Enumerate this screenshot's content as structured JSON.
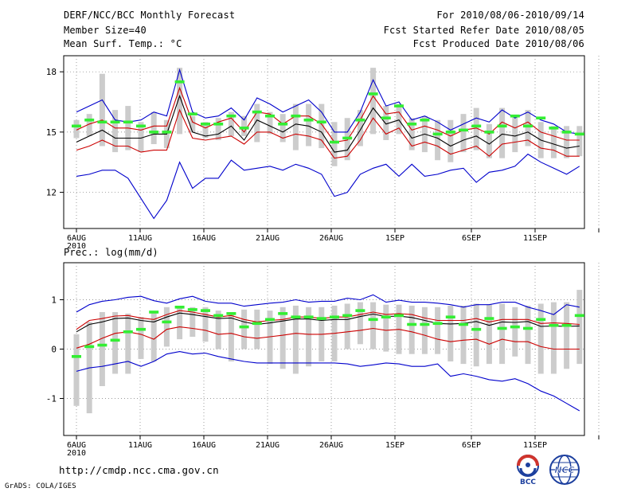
{
  "header": {
    "title": "DERF/NCC/BCC Monthly Forecast",
    "member_size": "Member Size=40",
    "variable": "Mean Surf. Temp.: °C",
    "forecast_range": "For 2010/08/06-2010/09/14",
    "started_date": "Fcst Started Refer Date 2010/08/05",
    "produced_date": "Fcst Produced Date 2010/08/06"
  },
  "footer": {
    "url": "http://cmdp.ncc.cma.gov.cn",
    "credit": "GrADS: COLA/IGES",
    "logo_bcc": "BCC",
    "logo_ncc": "NCC"
  },
  "colors": {
    "max_min": "#0000cc",
    "quartile": "#cc0000",
    "median": "#000000",
    "box": "#cccccc",
    "mean": "#33ee33"
  },
  "chart_data": [
    {
      "id": "temperature",
      "type": "box-ensemble",
      "title": "",
      "ylabel": "Mean Surf. Temp.: °C",
      "ylim": [
        10.2,
        18.8
      ],
      "yticks": [
        12,
        15,
        18
      ],
      "ytick_labels": [
        "12",
        "15",
        "18"
      ],
      "grid": true,
      "day_start": 1,
      "x_tick_days": [
        1,
        6,
        11,
        16,
        21,
        26,
        32,
        37,
        42
      ],
      "x_tick_labels": [
        "6AUG",
        "11AUG",
        "16AUG",
        "21AUG",
        "26AUG",
        "1SEP",
        "6SEP",
        "11SEP",
        ""
      ],
      "x_first_year": "2010",
      "series": {
        "max": [
          16.0,
          16.3,
          16.6,
          15.6,
          15.5,
          15.6,
          16.0,
          15.8,
          18.1,
          16.0,
          15.7,
          15.8,
          16.2,
          15.6,
          16.7,
          16.4,
          16.0,
          16.3,
          16.6,
          16.0,
          15.0,
          15.0,
          16.0,
          17.6,
          16.3,
          16.5,
          15.6,
          15.8,
          15.5,
          15.1,
          15.4,
          15.7,
          15.5,
          16.1,
          15.7,
          16.0,
          15.6,
          15.4,
          15.0,
          14.9
        ],
        "q75": [
          15.1,
          15.4,
          15.6,
          15.2,
          15.2,
          15.1,
          15.3,
          15.3,
          17.2,
          15.5,
          15.2,
          15.5,
          15.7,
          15.0,
          16.0,
          15.9,
          15.4,
          15.8,
          15.8,
          15.4,
          14.5,
          14.6,
          15.6,
          16.8,
          15.9,
          16.0,
          15.1,
          15.3,
          15.1,
          14.8,
          15.1,
          15.2,
          14.9,
          15.5,
          15.2,
          15.5,
          15.0,
          14.8,
          14.6,
          14.6
        ],
        "median": [
          14.5,
          14.8,
          15.1,
          14.7,
          14.7,
          14.7,
          14.9,
          14.9,
          16.8,
          15.0,
          14.8,
          14.9,
          15.3,
          14.6,
          15.6,
          15.3,
          15.0,
          15.4,
          15.3,
          15.0,
          14.0,
          14.1,
          15.1,
          16.2,
          15.4,
          15.6,
          14.7,
          14.9,
          14.7,
          14.3,
          14.6,
          14.8,
          14.4,
          14.9,
          14.8,
          15.0,
          14.6,
          14.4,
          14.2,
          14.3
        ],
        "q25": [
          14.1,
          14.3,
          14.6,
          14.3,
          14.3,
          14.0,
          14.1,
          14.1,
          16.1,
          14.7,
          14.6,
          14.7,
          14.8,
          14.4,
          15.0,
          15.0,
          14.7,
          14.9,
          14.8,
          14.6,
          13.7,
          13.8,
          14.6,
          15.7,
          14.9,
          15.2,
          14.3,
          14.5,
          14.3,
          13.9,
          14.1,
          14.3,
          13.8,
          14.4,
          14.5,
          14.6,
          14.2,
          14.1,
          13.8,
          13.8
        ],
        "min": [
          12.8,
          12.9,
          13.1,
          13.1,
          12.7,
          11.7,
          10.7,
          11.6,
          13.5,
          12.2,
          12.7,
          12.7,
          13.6,
          13.1,
          13.2,
          13.3,
          13.1,
          13.4,
          13.2,
          12.9,
          11.8,
          12.0,
          12.9,
          13.2,
          13.4,
          12.8,
          13.4,
          12.8,
          12.9,
          13.1,
          13.2,
          12.5,
          13.0,
          13.1,
          13.3,
          13.9,
          13.5,
          13.2,
          12.9,
          13.3
        ],
        "box_hi": [
          15.6,
          15.9,
          17.9,
          16.1,
          16.3,
          15.5,
          16.0,
          15.6,
          18.2,
          15.8,
          15.5,
          15.7,
          16.0,
          15.8,
          16.4,
          16.0,
          15.9,
          16.4,
          16.4,
          16.4,
          15.5,
          15.7,
          16.1,
          18.2,
          16.3,
          16.4,
          15.7,
          15.8,
          15.6,
          15.6,
          15.9,
          16.2,
          15.4,
          16.2,
          15.8,
          16.1,
          15.5,
          15.3,
          15.3,
          15.3
        ],
        "box_lo": [
          14.7,
          14.8,
          14.3,
          14.0,
          14.1,
          14.0,
          14.4,
          14.2,
          14.9,
          15.0,
          14.7,
          14.6,
          14.8,
          14.8,
          14.5,
          14.9,
          14.5,
          14.1,
          14.3,
          14.2,
          13.3,
          13.6,
          14.3,
          14.9,
          14.6,
          14.9,
          14.1,
          14.0,
          13.6,
          13.5,
          14.0,
          14.1,
          13.7,
          13.7,
          14.0,
          14.3,
          13.7,
          13.7,
          13.7,
          13.8
        ],
        "mean": [
          15.3,
          15.6,
          15.5,
          15.5,
          15.5,
          15.3,
          15.0,
          15.0,
          17.5,
          15.9,
          15.4,
          15.4,
          15.8,
          15.2,
          16.0,
          15.8,
          15.4,
          15.8,
          15.6,
          15.5,
          14.5,
          14.7,
          15.6,
          16.9,
          15.7,
          16.3,
          15.4,
          15.6,
          14.9,
          15.0,
          15.1,
          15.3,
          15.0,
          15.3,
          15.8,
          15.3,
          15.7,
          15.2,
          15.0,
          14.9
        ]
      }
    },
    {
      "id": "precipitation",
      "type": "box-ensemble",
      "title": "Prec.: log(mm/d)",
      "ylabel": "Prec.: log(mm/d)",
      "ylim": [
        -1.75,
        1.75
      ],
      "yticks": [
        -1,
        0,
        1
      ],
      "ytick_labels": [
        "-1",
        "0",
        "1"
      ],
      "grid": true,
      "day_start": 1,
      "x_tick_days": [
        1,
        6,
        11,
        16,
        21,
        26,
        32,
        37,
        42
      ],
      "x_tick_labels": [
        "6AUG",
        "11AUG",
        "16AUG",
        "21AUG",
        "26AUG",
        "1SEP",
        "6SEP",
        "11SEP",
        ""
      ],
      "x_first_year": "2010",
      "series": {
        "max": [
          0.75,
          0.9,
          0.97,
          1.0,
          1.05,
          1.07,
          0.98,
          0.93,
          1.02,
          1.07,
          0.97,
          0.93,
          0.93,
          0.87,
          0.9,
          0.93,
          0.95,
          1.0,
          0.95,
          0.97,
          0.97,
          1.03,
          1.0,
          1.1,
          0.95,
          0.99,
          0.95,
          0.95,
          0.93,
          0.9,
          0.85,
          0.9,
          0.9,
          0.95,
          0.95,
          0.85,
          0.78,
          0.7,
          0.9,
          0.85
        ],
        "q75": [
          0.4,
          0.58,
          0.62,
          0.67,
          0.68,
          0.63,
          0.6,
          0.7,
          0.78,
          0.75,
          0.7,
          0.65,
          0.68,
          0.6,
          0.55,
          0.58,
          0.6,
          0.65,
          0.65,
          0.62,
          0.65,
          0.65,
          0.7,
          0.75,
          0.7,
          0.72,
          0.7,
          0.63,
          0.58,
          0.58,
          0.58,
          0.62,
          0.55,
          0.6,
          0.6,
          0.6,
          0.52,
          0.53,
          0.52,
          0.5
        ],
        "median": [
          0.35,
          0.5,
          0.55,
          0.62,
          0.63,
          0.58,
          0.55,
          0.65,
          0.73,
          0.7,
          0.66,
          0.62,
          0.63,
          0.55,
          0.5,
          0.53,
          0.57,
          0.61,
          0.61,
          0.58,
          0.6,
          0.6,
          0.66,
          0.71,
          0.66,
          0.67,
          0.64,
          0.58,
          0.52,
          0.51,
          0.52,
          0.56,
          0.48,
          0.55,
          0.54,
          0.56,
          0.46,
          0.47,
          0.46,
          0.47
        ],
        "q25": [
          0.02,
          0.1,
          0.22,
          0.32,
          0.35,
          0.3,
          0.2,
          0.4,
          0.45,
          0.42,
          0.38,
          0.3,
          0.32,
          0.25,
          0.22,
          0.25,
          0.28,
          0.32,
          0.3,
          0.3,
          0.32,
          0.35,
          0.38,
          0.42,
          0.38,
          0.4,
          0.35,
          0.28,
          0.2,
          0.15,
          0.18,
          0.2,
          0.1,
          0.2,
          0.15,
          0.15,
          0.05,
          0.0,
          0.0,
          0.0
        ],
        "min": [
          -0.45,
          -0.38,
          -0.35,
          -0.3,
          -0.25,
          -0.35,
          -0.25,
          -0.1,
          -0.05,
          -0.1,
          -0.08,
          -0.15,
          -0.2,
          -0.25,
          -0.28,
          -0.28,
          -0.28,
          -0.28,
          -0.28,
          -0.28,
          -0.28,
          -0.3,
          -0.35,
          -0.32,
          -0.28,
          -0.3,
          -0.35,
          -0.35,
          -0.3,
          -0.55,
          -0.5,
          -0.55,
          -0.62,
          -0.65,
          -0.6,
          -0.7,
          -0.85,
          -0.95,
          -1.1,
          -1.25
        ],
        "box_hi": [
          0.3,
          0.55,
          0.75,
          0.75,
          0.72,
          0.65,
          0.75,
          0.85,
          0.85,
          0.85,
          0.85,
          0.78,
          0.75,
          0.8,
          0.8,
          0.78,
          0.85,
          0.88,
          0.85,
          0.85,
          0.88,
          0.92,
          0.95,
          0.95,
          0.9,
          0.9,
          0.88,
          0.85,
          0.85,
          0.88,
          0.88,
          0.92,
          0.9,
          0.92,
          0.85,
          0.88,
          0.92,
          0.95,
          0.95,
          1.2
        ],
        "box_lo": [
          -1.15,
          -1.3,
          -0.75,
          -0.5,
          -0.5,
          -0.2,
          -0.25,
          0.05,
          0.2,
          0.25,
          0.15,
          0.0,
          -0.25,
          0.0,
          0.0,
          -0.3,
          -0.4,
          -0.5,
          -0.35,
          -0.25,
          -0.25,
          0.0,
          0.1,
          0.0,
          -0.05,
          -0.1,
          -0.1,
          -0.1,
          -0.1,
          -0.25,
          -0.3,
          -0.35,
          -0.3,
          -0.3,
          -0.15,
          -0.3,
          -0.5,
          -0.5,
          -0.4,
          -0.3
        ],
        "mean": [
          -0.15,
          0.05,
          0.08,
          0.18,
          0.35,
          0.4,
          0.75,
          0.55,
          0.85,
          0.8,
          0.78,
          0.68,
          0.72,
          0.45,
          0.52,
          0.6,
          0.72,
          0.65,
          0.65,
          0.62,
          0.65,
          0.68,
          0.78,
          0.6,
          0.65,
          0.68,
          0.5,
          0.5,
          0.52,
          0.65,
          0.5,
          0.4,
          0.62,
          0.42,
          0.45,
          0.42,
          0.6,
          0.48,
          0.48,
          0.68
        ]
      }
    }
  ]
}
